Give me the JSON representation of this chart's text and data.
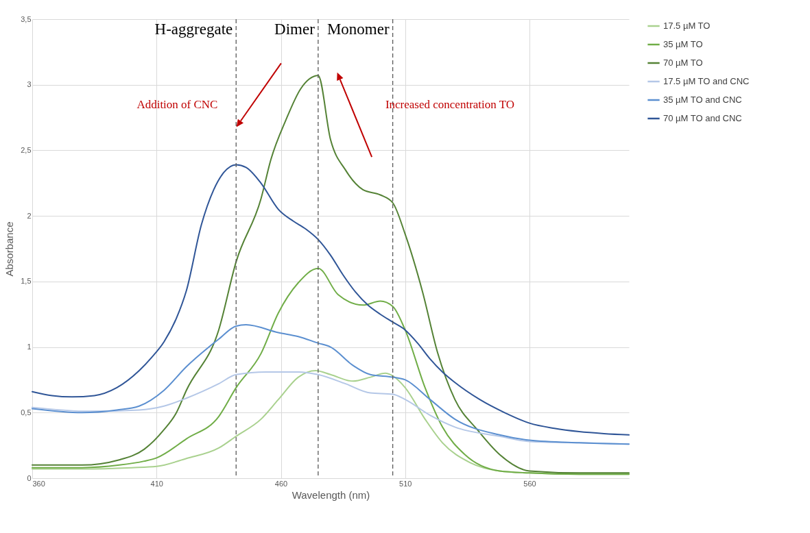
{
  "chart_data": {
    "type": "line",
    "xlabel": "Wavelength (nm)",
    "ylabel": "Absorbance",
    "xlim": [
      360,
      600
    ],
    "ylim": [
      0,
      3.5
    ],
    "xticks": [
      360,
      410,
      460,
      510,
      560
    ],
    "yticks": [
      0,
      {
        "value": 0.5,
        "label": "0,5"
      },
      1,
      {
        "value": 1.5,
        "label": "1,5"
      },
      2,
      {
        "value": 2.5,
        "label": "2,5"
      },
      3,
      {
        "value": 3.5,
        "label": "3,5"
      }
    ],
    "grid": true,
    "legend": "right",
    "series": [
      {
        "name": "17.5 µM TO",
        "color": "#a9d18e",
        "x": [
          360,
          380,
          400,
          410,
          422,
          435,
          442,
          452,
          459,
          467,
          474,
          480,
          489,
          496,
          502,
          505,
          510,
          518,
          525,
          536,
          548,
          560,
          580,
          600
        ],
        "values": [
          0.07,
          0.07,
          0.08,
          0.09,
          0.15,
          0.23,
          0.32,
          0.45,
          0.6,
          0.77,
          0.82,
          0.79,
          0.74,
          0.77,
          0.8,
          0.78,
          0.69,
          0.45,
          0.27,
          0.12,
          0.055,
          0.04,
          0.03,
          0.03
        ]
      },
      {
        "name": "35 µM TO",
        "color": "#70ad47",
        "x": [
          360,
          380,
          395,
          405,
          410,
          422,
          435,
          442,
          452,
          459,
          467,
          475,
          483,
          493,
          500,
          505,
          510,
          518,
          525,
          534,
          548,
          560,
          580,
          600
        ],
        "values": [
          0.08,
          0.08,
          0.1,
          0.13,
          0.155,
          0.3,
          0.47,
          0.69,
          0.95,
          1.26,
          1.49,
          1.6,
          1.4,
          1.32,
          1.35,
          1.31,
          1.13,
          0.69,
          0.39,
          0.18,
          0.055,
          0.04,
          0.03,
          0.03
        ]
      },
      {
        "name": "70 µM TO",
        "color": "#548235",
        "x": [
          360,
          380,
          395,
          405,
          413,
          418,
          422,
          435,
          442,
          452,
          456,
          462,
          468,
          475,
          480,
          486,
          493,
          500,
          505,
          510,
          517,
          523,
          530,
          539,
          548,
          560,
          580,
          600
        ],
        "values": [
          0.1,
          0.1,
          0.14,
          0.22,
          0.37,
          0.5,
          0.67,
          1.13,
          1.65,
          2.13,
          2.43,
          2.73,
          2.97,
          3.07,
          2.58,
          2.35,
          2.2,
          2.16,
          2.1,
          1.86,
          1.42,
          0.96,
          0.6,
          0.37,
          0.18,
          0.055,
          0.04,
          0.04
        ]
      },
      {
        "name": "17.5 µM TO and CNC",
        "color": "#b4c7e7",
        "x": [
          360,
          383,
          403,
          413,
          422,
          435,
          442,
          454,
          467,
          475,
          486,
          496,
          505,
          510,
          520,
          530,
          548,
          560,
          580,
          600
        ],
        "values": [
          0.54,
          0.51,
          0.52,
          0.55,
          0.61,
          0.72,
          0.79,
          0.81,
          0.81,
          0.79,
          0.72,
          0.65,
          0.64,
          0.6,
          0.48,
          0.39,
          0.32,
          0.28,
          0.27,
          0.26
        ]
      },
      {
        "name": "35 µM TO and CNC",
        "color": "#5b8fd0",
        "x": [
          360,
          380,
          394,
          403,
          413,
          422,
          435,
          442,
          446,
          459,
          467,
          475,
          480,
          489,
          496,
          505,
          510,
          520,
          530,
          548,
          560,
          580,
          600
        ],
        "values": [
          0.53,
          0.5,
          0.52,
          0.55,
          0.67,
          0.85,
          1.06,
          1.16,
          1.17,
          1.11,
          1.08,
          1.03,
          1.0,
          0.86,
          0.79,
          0.77,
          0.75,
          0.6,
          0.45,
          0.33,
          0.29,
          0.27,
          0.26
        ]
      },
      {
        "name": "70 µM TO and CNC",
        "color": "#2f5597",
        "x": [
          360,
          368,
          376,
          385,
          394,
          403,
          408,
          413,
          418,
          422,
          428,
          433,
          437,
          442,
          446,
          452,
          459,
          465,
          470,
          475,
          480,
          485,
          490,
          495,
          500,
          505,
          510,
          515,
          520,
          525,
          530,
          540,
          550,
          560,
          570,
          580,
          590,
          600
        ],
        "values": [
          0.66,
          0.63,
          0.62,
          0.63,
          0.69,
          0.82,
          0.92,
          1.04,
          1.22,
          1.43,
          1.93,
          2.2,
          2.33,
          2.39,
          2.37,
          2.25,
          2.05,
          1.96,
          1.9,
          1.82,
          1.7,
          1.55,
          1.42,
          1.32,
          1.25,
          1.19,
          1.13,
          1.03,
          0.91,
          0.81,
          0.73,
          0.6,
          0.5,
          0.42,
          0.38,
          0.355,
          0.34,
          0.33
        ]
      }
    ],
    "ref_lines": [
      {
        "axis": "x",
        "value": 442,
        "label": "H-aggregate",
        "color": "#595959",
        "line_style": "dashed"
      },
      {
        "axis": "x",
        "value": 475,
        "label": "Dimer",
        "color": "#595959",
        "line_style": "dashed"
      },
      {
        "axis": "x",
        "value": 505,
        "label": "Monomer",
        "color": "#595959",
        "line_style": "dashed"
      }
    ],
    "annotations": [
      "Addition of CNC",
      "Increased concentration TO"
    ]
  }
}
